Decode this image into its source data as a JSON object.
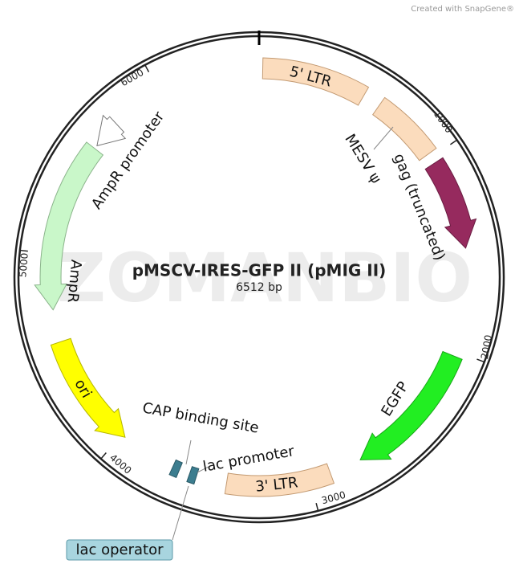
{
  "credit": "Created with SnapGene®",
  "watermark": "ZOMANBIO",
  "title": "pMSCV-IRES-GFP II (pMIG II)",
  "length": "6512 bp",
  "ticks": [
    "1000",
    "2000",
    "3000",
    "4000",
    "5000",
    "6000"
  ],
  "features": [
    {
      "label": "5' LTR"
    },
    {
      "label": "MESV ψ"
    },
    {
      "label": "gag (truncated)"
    },
    {
      "label": "EGFP"
    },
    {
      "label": "3' LTR"
    },
    {
      "label": "lac promoter"
    },
    {
      "label": "CAP binding site"
    },
    {
      "label": "lac operator"
    },
    {
      "label": "ori"
    },
    {
      "label": "AmpR"
    },
    {
      "label": "AmpR promoter"
    }
  ]
}
